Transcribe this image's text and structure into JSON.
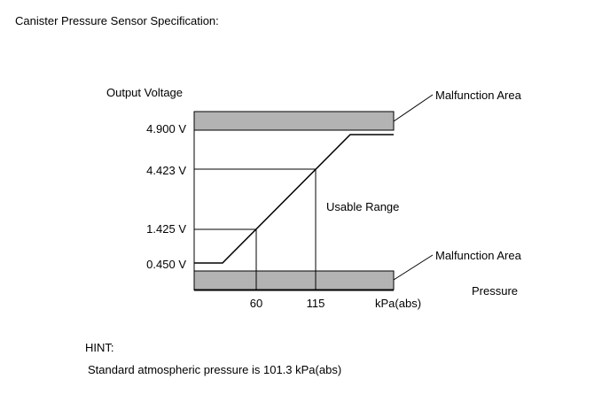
{
  "title": "Canister Pressure Sensor Specification:",
  "chart_data": {
    "type": "line",
    "ylabel": "Output Voltage",
    "xlabel": "Pressure",
    "xunit": "kPa(abs)",
    "y_ticks": [
      "4.900 V",
      "4.423 V",
      "1.425 V",
      "0.450 V"
    ],
    "x_ticks": [
      "60",
      "115"
    ],
    "reference_points": [
      {
        "x": 60,
        "y": 1.425
      },
      {
        "x": 115,
        "y": 4.423
      }
    ],
    "regions": {
      "upper": "Malfunction Area",
      "lower": "Malfunction Area",
      "middle": "Usable Range"
    }
  },
  "hint": {
    "heading": "HINT:",
    "body": "Standard atmospheric pressure is 101.3 kPa(abs)"
  },
  "colors": {
    "band": "#b3b3b3",
    "line": "#000000"
  }
}
